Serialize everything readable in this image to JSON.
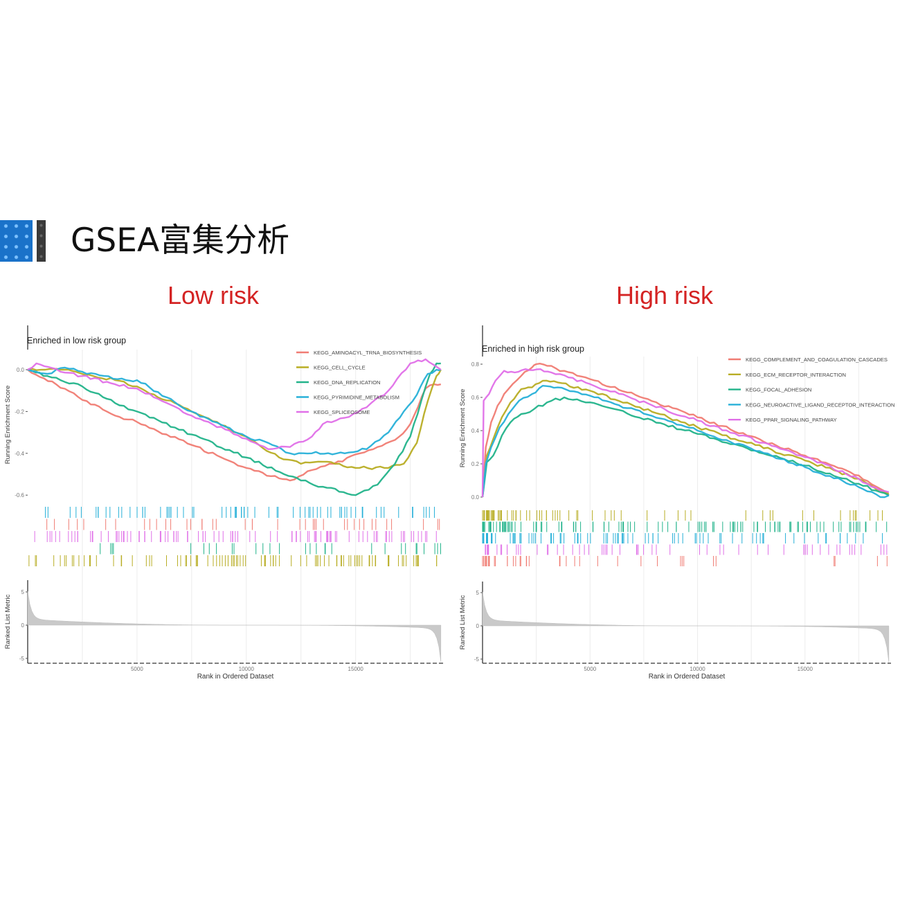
{
  "header": {
    "title": "GSEA富集分析",
    "logo_icon": "blue-dot-grid-icon"
  },
  "groups": {
    "low": {
      "label": "Low risk",
      "color": "#d42323"
    },
    "high": {
      "label": "High risk",
      "color": "#d42323"
    }
  },
  "colors": {
    "red": "#f07c73",
    "olive": "#b8ad24",
    "green": "#22b38a",
    "blue": "#27b0d8",
    "magenta": "#e070e8",
    "metric_fill": "#c8c8c8",
    "grid": "#ebebeb"
  },
  "chart_data": [
    {
      "type": "line",
      "title": "Enriched in low risk group",
      "xlabel": "Rank in Ordered Dataset",
      "ylabel": "Running Enrichment Score",
      "ylabel_metric": "Ranked List Metric",
      "xlim": [
        0,
        19000
      ],
      "ylim": [
        -0.65,
        0.08
      ],
      "x_ticks": [
        5000,
        10000,
        15000
      ],
      "y_ticks": [
        0.0,
        -0.2,
        -0.4,
        -0.6
      ],
      "y_tick_labels": [
        "0.0",
        "-0.2",
        "-0.4",
        "-0.6"
      ],
      "metric_ticks": [
        5,
        0,
        -5
      ],
      "metric_ylim": [
        -5.5,
        7.5
      ],
      "grid": true,
      "legend_position": "top-right-inside",
      "series": [
        {
          "name": "KEGG_AMINOACYL_TRNA_BIOSYNTHESIS",
          "color": "#f07c73",
          "x": [
            0,
            1300,
            2700,
            4000,
            5000,
            7500,
            10000,
            11500,
            12000,
            13000,
            14000,
            15200,
            16000,
            17000,
            17500,
            18200,
            18600,
            18900
          ],
          "y": [
            0.0,
            -0.07,
            -0.15,
            -0.22,
            -0.25,
            -0.36,
            -0.47,
            -0.52,
            -0.53,
            -0.48,
            -0.45,
            -0.4,
            -0.37,
            -0.32,
            -0.26,
            -0.09,
            -0.07,
            -0.07
          ]
        },
        {
          "name": "KEGG_CELL_CYCLE",
          "color": "#b8ad24",
          "x": [
            0,
            800,
            1500,
            2200,
            3000,
            4000,
            5000,
            7500,
            10000,
            11500,
            12500,
            13500,
            15000,
            16500,
            17200,
            17800,
            18300,
            18700,
            18900
          ],
          "y": [
            0.0,
            0.0,
            0.0,
            -0.01,
            -0.03,
            -0.05,
            -0.08,
            -0.2,
            -0.32,
            -0.42,
            -0.45,
            -0.44,
            -0.47,
            -0.47,
            -0.45,
            -0.35,
            -0.15,
            -0.03,
            0.0
          ]
        },
        {
          "name": "KEGG_DNA_REPLICATION",
          "color": "#22b38a",
          "x": [
            0,
            900,
            1500,
            2500,
            4000,
            5000,
            7500,
            10000,
            12500,
            13500,
            15000,
            16000,
            16800,
            17500,
            18000,
            18400,
            18700,
            18900
          ],
          "y": [
            0.0,
            -0.03,
            -0.05,
            -0.08,
            -0.16,
            -0.2,
            -0.31,
            -0.42,
            -0.53,
            -0.56,
            -0.6,
            -0.55,
            -0.45,
            -0.32,
            -0.15,
            -0.02,
            0.03,
            0.03
          ]
        },
        {
          "name": "KEGG_PYRIMIDINE_METABOLISM",
          "color": "#27b0d8",
          "x": [
            0,
            900,
            1700,
            2500,
            3500,
            4500,
            5000,
            7500,
            10000,
            11000,
            12000,
            13000,
            14500,
            15500,
            16500,
            17200,
            17800,
            18300,
            18700,
            18900
          ],
          "y": [
            0.0,
            -0.02,
            0.01,
            -0.01,
            -0.03,
            -0.05,
            -0.05,
            -0.2,
            -0.32,
            -0.35,
            -0.4,
            -0.4,
            -0.4,
            -0.38,
            -0.3,
            -0.2,
            -0.12,
            -0.02,
            0.0,
            0.0
          ]
        },
        {
          "name": "KEGG_SPLICEOSOME",
          "color": "#e070e8",
          "x": [
            0,
            400,
            1500,
            2500,
            4000,
            5000,
            7500,
            10000,
            11000,
            12000,
            13000,
            13500,
            14500,
            15500,
            16500,
            17500,
            18200,
            18900
          ],
          "y": [
            0.0,
            0.03,
            -0.01,
            -0.03,
            -0.07,
            -0.09,
            -0.22,
            -0.33,
            -0.38,
            -0.37,
            -0.32,
            -0.26,
            -0.23,
            -0.18,
            -0.1,
            0.03,
            0.05,
            0.0
          ]
        }
      ],
      "rug_rows": [
        {
          "series": "KEGG_PYRIMIDINE_METABOLISM",
          "color": "#27b0d8"
        },
        {
          "series": "KEGG_AMINOACYL_TRNA_BIOSYNTHESIS",
          "color": "#f07c73"
        },
        {
          "series": "KEGG_SPLICEOSOME",
          "color": "#e070e8"
        },
        {
          "series": "KEGG_DNA_REPLICATION",
          "color": "#22b38a"
        },
        {
          "series": "KEGG_CELL_CYCLE",
          "color": "#b8ad24"
        }
      ]
    },
    {
      "type": "line",
      "title": "Enriched in high risk group",
      "xlabel": "Rank in Ordered Dataset",
      "ylabel": "Running Enrichment Score",
      "ylabel_metric": "Ranked List Metric",
      "xlim": [
        0,
        19000
      ],
      "ylim": [
        -0.02,
        0.85
      ],
      "x_ticks": [
        5000,
        10000,
        15000
      ],
      "y_ticks": [
        0.0,
        0.2,
        0.4,
        0.6,
        0.8
      ],
      "y_tick_labels": [
        "0.0",
        "0.2",
        "0.4",
        "0.6",
        "0.8"
      ],
      "metric_ticks": [
        5,
        0,
        -5
      ],
      "metric_ylim": [
        -5.5,
        7.5
      ],
      "grid": true,
      "legend_position": "top-right-inside",
      "series": [
        {
          "name": "KEGG_COMPLEMENT_AND_COAGULATION_CASCADES",
          "color": "#f07c73",
          "x": [
            0,
            150,
            400,
            700,
            1000,
            1400,
            1800,
            2300,
            2500,
            3000,
            5000,
            10000,
            15000,
            17500,
            18500,
            18900
          ],
          "y": [
            0.0,
            0.3,
            0.45,
            0.55,
            0.62,
            0.68,
            0.73,
            0.78,
            0.8,
            0.79,
            0.71,
            0.48,
            0.25,
            0.13,
            0.05,
            0.01
          ]
        },
        {
          "name": "KEGG_ECM_RECEPTOR_INTERACTION",
          "color": "#b8ad24",
          "x": [
            0,
            200,
            500,
            900,
            1300,
            1800,
            2300,
            2800,
            3500,
            5000,
            10000,
            15000,
            17500,
            18500,
            18900
          ],
          "y": [
            0.0,
            0.25,
            0.35,
            0.48,
            0.57,
            0.65,
            0.66,
            0.7,
            0.69,
            0.64,
            0.42,
            0.22,
            0.11,
            0.04,
            0.02
          ]
        },
        {
          "name": "KEGG_FOCAL_ADHESION",
          "color": "#22b38a",
          "x": [
            0,
            200,
            500,
            900,
            1300,
            1800,
            2400,
            3000,
            3800,
            5000,
            10000,
            15000,
            17500,
            18500,
            18900
          ],
          "y": [
            0.0,
            0.21,
            0.25,
            0.37,
            0.45,
            0.5,
            0.53,
            0.57,
            0.6,
            0.57,
            0.38,
            0.19,
            0.08,
            0.03,
            0.01
          ]
        },
        {
          "name": "KEGG_NEUROACTIVE_LIGAND_RECEPTOR_INTERACTION",
          "color": "#27b0d8",
          "x": [
            0,
            150,
            400,
            800,
            1200,
            1700,
            2300,
            2800,
            3500,
            5000,
            10000,
            15000,
            17500,
            18500,
            18900
          ],
          "y": [
            0.0,
            0.2,
            0.3,
            0.42,
            0.5,
            0.58,
            0.62,
            0.67,
            0.66,
            0.61,
            0.4,
            0.18,
            0.06,
            0.0,
            0.01
          ]
        },
        {
          "name": "KEGG_PPAR_SIGNALING_PATHWAY",
          "color": "#e070e8",
          "x": [
            0,
            50,
            300,
            600,
            1000,
            1500,
            2000,
            2700,
            3200,
            4000,
            5000,
            10000,
            15000,
            17500,
            18500,
            18900
          ],
          "y": [
            0.0,
            0.58,
            0.62,
            0.7,
            0.76,
            0.75,
            0.77,
            0.77,
            0.75,
            0.72,
            0.68,
            0.46,
            0.24,
            0.11,
            0.04,
            0.03
          ]
        }
      ],
      "rug_rows": [
        {
          "series": "KEGG_ECM_RECEPTOR_INTERACTION",
          "color": "#b8ad24"
        },
        {
          "series": "KEGG_FOCAL_ADHESION",
          "color": "#22b38a"
        },
        {
          "series": "KEGG_NEUROACTIVE_LIGAND_RECEPTOR_INTERACTION",
          "color": "#27b0d8"
        },
        {
          "series": "KEGG_PPAR_SIGNALING_PATHWAY",
          "color": "#e070e8"
        },
        {
          "series": "KEGG_COMPLEMENT_AND_COAGULATION_CASCADES",
          "color": "#f07c73"
        }
      ]
    }
  ]
}
